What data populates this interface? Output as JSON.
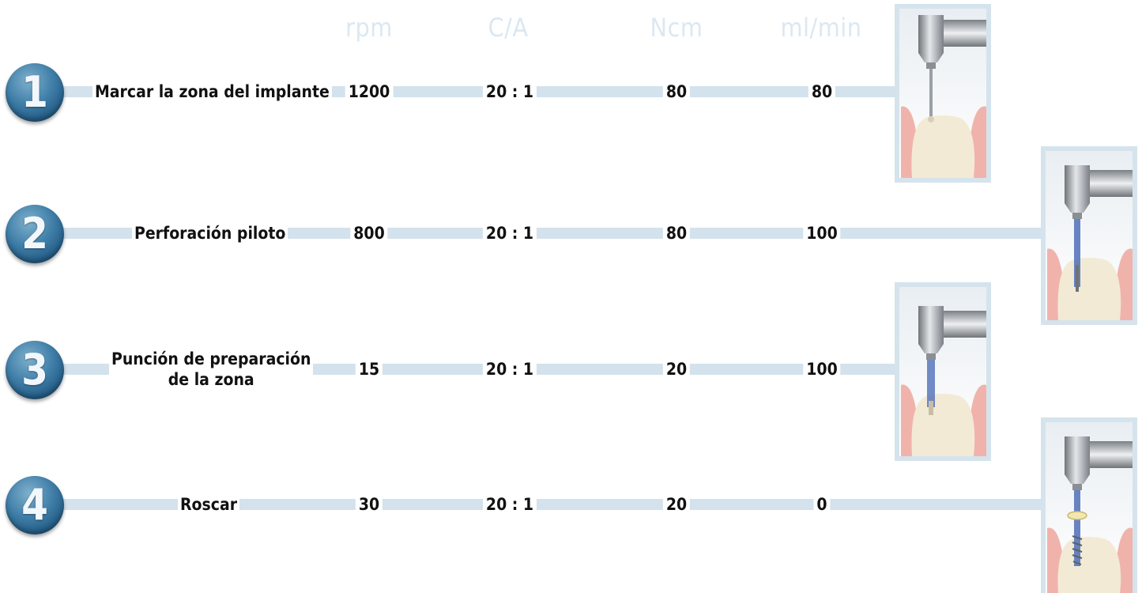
{
  "columns": {
    "rpm": "rpm",
    "ca": "C/A",
    "ncm": "Ncm",
    "mlmin": "ml/min"
  },
  "steps": [
    {
      "number": "1",
      "label": "Marcar la zona del implante",
      "rpm": "1200",
      "ca": "20 : 1",
      "ncm": "80",
      "mlmin": "80",
      "illustration": "marking-bur-icon"
    },
    {
      "number": "2",
      "label": "Perforación piloto",
      "rpm": "800",
      "ca": "20 : 1",
      "ncm": "80",
      "mlmin": "100",
      "illustration": "pilot-drill-icon"
    },
    {
      "number": "3",
      "label_line1": "Punción de preparación",
      "label_line2": "de la zona",
      "rpm": "15",
      "ca": "20 : 1",
      "ncm": "20",
      "mlmin": "100",
      "illustration": "punch-icon"
    },
    {
      "number": "4",
      "label": "Roscar",
      "rpm": "30",
      "ca": "20 : 1",
      "ncm": "20",
      "mlmin": "0",
      "illustration": "tap-icon"
    }
  ],
  "colors": {
    "header": "#dbe8f2",
    "bar": "#d3e2ec",
    "circle": "#2f6a94",
    "gum": "#f0b3ab",
    "bone": "#f2ead5",
    "frame": "#d5e3ec",
    "tool_blue": "#4f6fb8"
  }
}
